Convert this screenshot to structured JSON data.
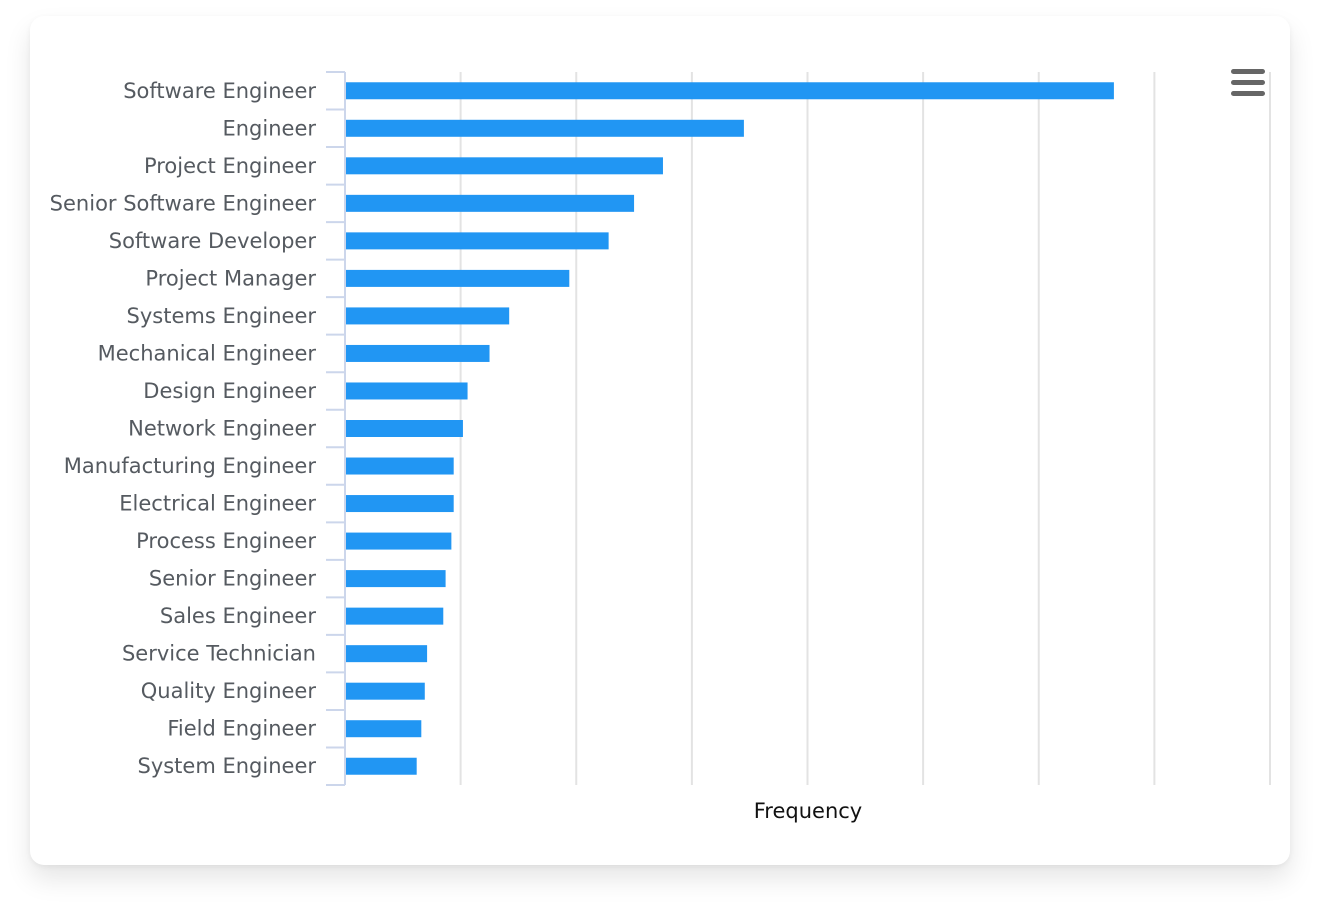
{
  "chart_data": {
    "type": "bar",
    "orientation": "horizontal",
    "categories": [
      "Software Engineer",
      "Engineer",
      "Project Engineer",
      "Senior Software Engineer",
      "Software Developer",
      "Project Manager",
      "Systems Engineer",
      "Mechanical Engineer",
      "Design Engineer",
      "Network Engineer",
      "Manufacturing Engineer",
      "Electrical Engineer",
      "Process Engineer",
      "Senior Engineer",
      "Sales Engineer",
      "Service Technician",
      "Quality Engineer",
      "Field Engineer",
      "System Engineer"
    ],
    "values": [
      66.5,
      34.5,
      27.5,
      25,
      22.8,
      19.4,
      14.2,
      12.5,
      10.6,
      10.2,
      9.4,
      9.4,
      9.2,
      8.7,
      8.5,
      7.1,
      6.9,
      6.6,
      6.2
    ],
    "xlabel": "Frequency",
    "ylabel": "",
    "title": "",
    "xlim": [
      0,
      80
    ],
    "grid": true,
    "legend": "none",
    "bar_color": "#2196f3",
    "tick_labels_x_visible": false
  },
  "toolbar": {
    "menu_icon": "hamburger-menu-icon",
    "icon_color": "#666666"
  }
}
